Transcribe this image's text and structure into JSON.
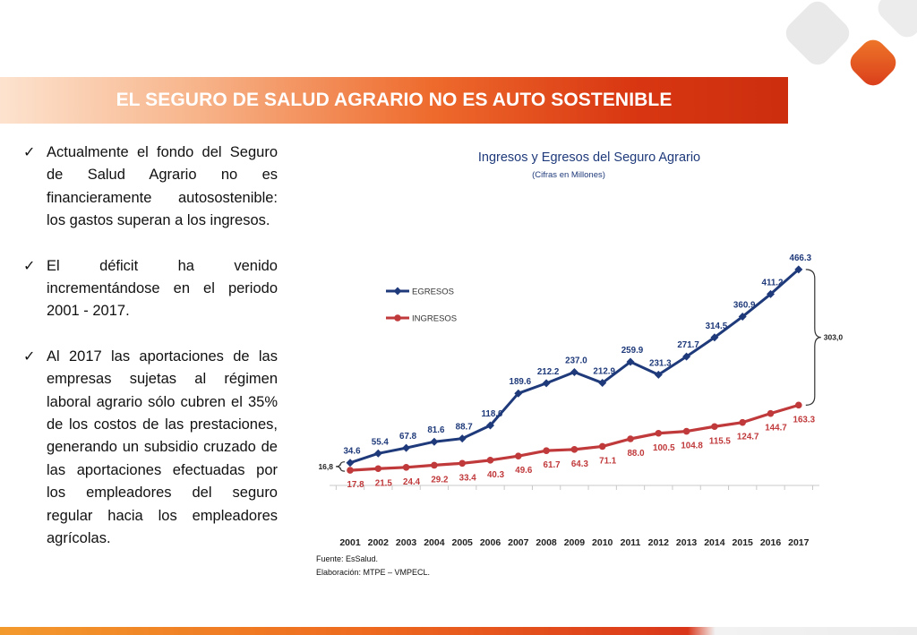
{
  "slide": {
    "title": "EL SEGURO DE SALUD AGRARIO NO ES AUTO SOSTENIBLE",
    "check_glyph": "✓",
    "bullets": [
      "Actualmente el fondo del Seguro de Salud Agrario no es financieramente autosostenible: los gastos superan a los ingresos.",
      "El déficit ha venido incrementándose en el periodo 2001 - 2017.",
      "Al 2017 las aportaciones de las empresas sujetas al régimen laboral agrario sólo cubren el 35% de los costos de las prestaciones, generando un subsidio cruzado de las aportaciones efectuadas por los empleadores del seguro regular hacia los empleadores agrícolas."
    ],
    "colors": {
      "egresos": "#1f3a7a",
      "ingresos": "#c0393b",
      "accent": "#e3541c"
    }
  },
  "chart_data": {
    "type": "line",
    "title": "Ingresos y Egresos del Seguro Agrario",
    "subtitle": "(Cifras en Millones)",
    "categories": [
      "2001",
      "2002",
      "2003",
      "2004",
      "2005",
      "2006",
      "2007",
      "2008",
      "2009",
      "2010",
      "2011",
      "2012",
      "2013",
      "2014",
      "2015",
      "2016",
      "2017"
    ],
    "series": [
      {
        "name": "EGRESOS",
        "color": "#1f3a7a",
        "values": [
          34.6,
          55.4,
          67.8,
          81.6,
          88.7,
          118.0,
          189.6,
          212.2,
          237.0,
          212.9,
          259.9,
          231.3,
          271.7,
          314.5,
          360.9,
          411.2,
          466.3
        ]
      },
      {
        "name": "INGRESOS",
        "color": "#c0393b",
        "values": [
          17.8,
          21.5,
          24.4,
          29.2,
          33.4,
          40.3,
          49.6,
          61.7,
          64.3,
          71.1,
          88.0,
          100.5,
          104.8,
          115.5,
          124.7,
          144.7,
          163.3
        ]
      }
    ],
    "ylim": [
      0,
      500
    ],
    "legend_position": "left",
    "annotations": {
      "start_gap": "16,8",
      "end_gap": "303,0"
    },
    "source_lines": [
      "Fuente: EsSalud.",
      "Elaboración:  MTPE – VMPECL."
    ]
  }
}
